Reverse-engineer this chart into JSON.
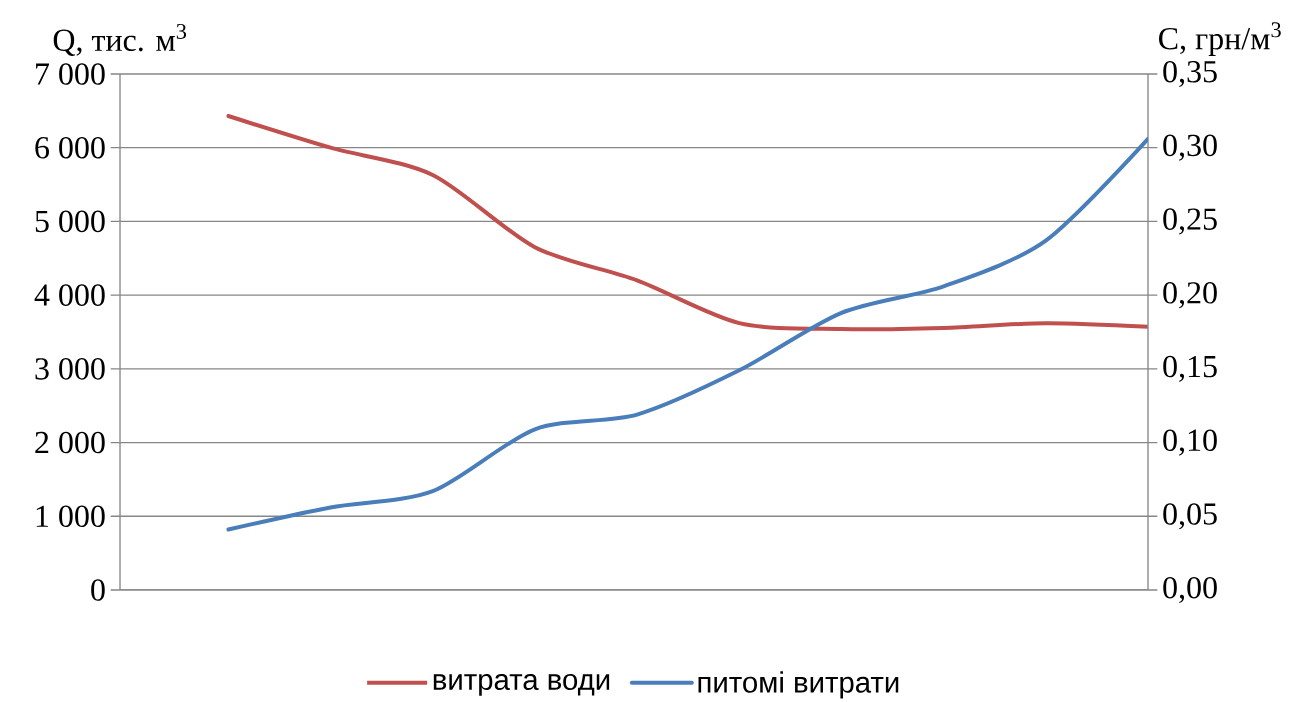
{
  "chart_data": {
    "type": "line",
    "ylabel": "Q, тис. м$^{3}$",
    "y2label": "C, грн/м$^{3}$",
    "categories": [
      null,
      null,
      null,
      null,
      null,
      null,
      null,
      null,
      null,
      null
    ],
    "series": [
      {
        "name": "витрата води",
        "color": "#c0504d",
        "values": [
          6430,
          6000,
          5630,
          4650,
          4200,
          3620,
          3540,
          3555,
          3620,
          3570
        ]
      },
      {
        "name": "питомі витрати",
        "color": "#4a7ebb",
        "axis": "y2",
        "values": [
          0.041,
          0.056,
          0.067,
          0.109,
          0.119,
          0.149,
          0.188,
          0.206,
          0.237,
          0.306
        ]
      }
    ],
    "ylim": [
      0,
      7000
    ],
    "yticks": [
      0,
      {
        "value": 1000,
        "label": "1 000"
      },
      {
        "value": 2000,
        "label": "2 000"
      },
      {
        "value": 3000,
        "label": "3 000"
      },
      {
        "value": 4000,
        "label": "4 000"
      },
      {
        "value": 5000,
        "label": "5 000"
      },
      {
        "value": 6000,
        "label": "6 000"
      },
      {
        "value": 7000,
        "label": "7 000"
      }
    ],
    "y2lim": [
      0,
      0.35
    ],
    "y2ticks": [
      {
        "value": 0,
        "label": "0,00"
      },
      {
        "value": 0.05,
        "label": "0,05"
      },
      {
        "value": 0.1,
        "label": "0,10"
      },
      {
        "value": 0.15,
        "label": "0,15"
      },
      {
        "value": 0.2,
        "label": "0,20"
      },
      {
        "value": 0.25,
        "label": "0,25"
      },
      {
        "value": 0.3,
        "label": "0,30"
      },
      {
        "value": 0.35,
        "label": "0,35"
      }
    ],
    "grid": "y",
    "legend": "bottom",
    "line_style": "solid",
    "marker": "none"
  }
}
